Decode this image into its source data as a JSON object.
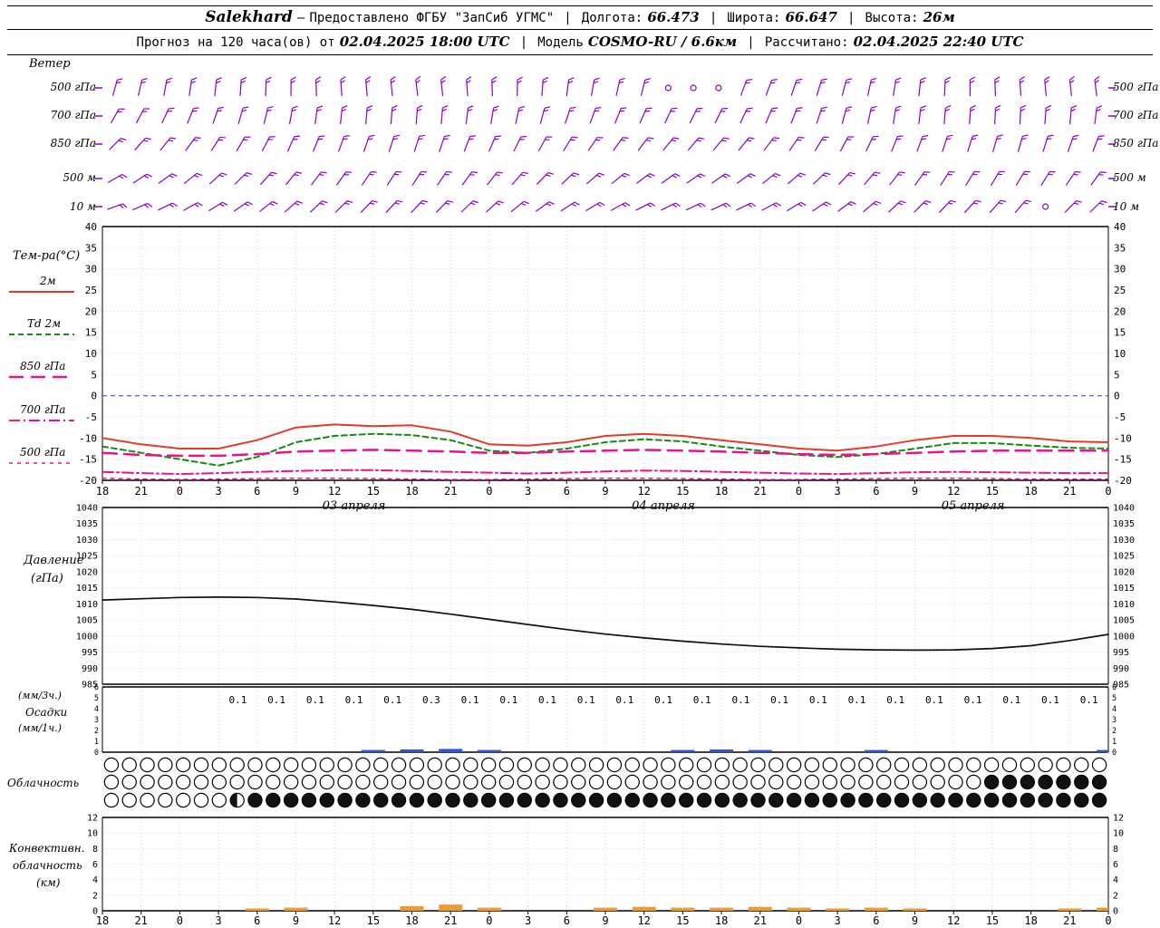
{
  "header": {
    "station": "Salekhard",
    "dash": "—",
    "provider": "Предоставлено ФГБУ \"ЗапСиб УГМС\"",
    "sep": "|",
    "lon_label": "Долгота:",
    "lon": "66.473",
    "lat_label": "Широта:",
    "lat": "66.647",
    "alt_label": "Высота:",
    "alt": "26м",
    "forecast_label": "Прогноз на 120 часа(ов) от",
    "run_time": "02.04.2025 18:00 UTC",
    "model_label": "Модель",
    "model": "COSMO-RU / 6.6км",
    "calc_label": "Рассчитано:",
    "calc_time": "02.04.2025 22:40 UTC"
  },
  "x_axis": {
    "tick_labels": [
      "18",
      "21",
      "0",
      "3",
      "6",
      "9",
      "12",
      "15",
      "18",
      "21",
      "0",
      "3",
      "6",
      "9",
      "12",
      "15",
      "18",
      "21",
      "0",
      "3",
      "6",
      "9",
      "12",
      "15",
      "18",
      "21",
      "0"
    ],
    "date_labels": [
      {
        "label": "03 апреля",
        "slot": 6.5
      },
      {
        "label": "04 апреля",
        "slot": 14.5
      },
      {
        "label": "05 апреля",
        "slot": 22.5
      }
    ]
  },
  "chart_data": [
    {
      "type": "scatter",
      "title": "Ветер",
      "color": "#8800cc",
      "levels": [
        {
          "label": "500 гПа",
          "angles": [
            15,
            13,
            10,
            8,
            6,
            4,
            2,
            0,
            -2,
            -4,
            -5,
            -6,
            -7,
            -6,
            -4,
            -2,
            1,
            4,
            7,
            10,
            12,
            14,
            null,
            null,
            null,
            20,
            20,
            19,
            17,
            15,
            12,
            9,
            6,
            3,
            0,
            -2,
            -4,
            -5,
            -6,
            -7
          ]
        },
        {
          "label": "700 гПа",
          "angles": [
            30,
            28,
            25,
            22,
            19,
            16,
            13,
            10,
            8,
            6,
            5,
            4,
            4,
            5,
            7,
            9,
            12,
            15,
            18,
            20,
            22,
            24,
            25,
            26,
            26,
            25,
            23,
            21,
            18,
            15,
            12,
            9,
            7,
            5,
            4,
            3,
            3,
            4,
            5,
            7
          ]
        },
        {
          "label": "850 гПа",
          "angles": [
            45,
            42,
            39,
            36,
            33,
            30,
            27,
            24,
            22,
            20,
            19,
            18,
            18,
            19,
            21,
            23,
            26,
            29,
            32,
            34,
            36,
            38,
            39,
            40,
            40,
            39,
            37,
            34,
            31,
            28,
            25,
            22,
            20,
            18,
            17,
            16,
            16,
            17,
            19,
            21
          ]
        },
        {
          "label": "500 м",
          "angles": [
            60,
            57,
            54,
            51,
            48,
            45,
            42,
            39,
            37,
            35,
            34,
            33,
            33,
            34,
            36,
            38,
            41,
            44,
            47,
            49,
            51,
            53,
            54,
            55,
            55,
            54,
            52,
            49,
            46,
            43,
            40,
            37,
            35,
            33,
            32,
            31,
            31,
            32,
            34,
            36
          ]
        },
        {
          "label": "10 м",
          "angles": [
            70,
            67,
            64,
            61,
            58,
            55,
            52,
            49,
            47,
            45,
            44,
            43,
            43,
            44,
            46,
            48,
            51,
            54,
            57,
            59,
            61,
            63,
            64,
            65,
            65,
            64,
            62,
            59,
            56,
            53,
            50,
            47,
            45,
            43,
            42,
            41,
            41,
            null,
            44,
            46
          ]
        }
      ]
    },
    {
      "type": "line",
      "title": "Тем-ра(°C)",
      "ylim": [
        -20,
        40
      ],
      "yticks": [
        40,
        35,
        30,
        25,
        20,
        15,
        10,
        5,
        0,
        -5,
        -10,
        -15,
        -20
      ],
      "zero_line_color": "#3a5bd9",
      "series": [
        {
          "name": "2м",
          "color": "#e03c28",
          "dash": "",
          "width": 2,
          "values": [
            -10,
            -11.5,
            -12.5,
            -12.5,
            -10.5,
            -7.5,
            -6.8,
            -7.2,
            -7,
            -8.5,
            -11.5,
            -11.8,
            -11,
            -9.5,
            -9,
            -9.5,
            -10.5,
            -11.5,
            -12.5,
            -13,
            -12,
            -10.5,
            -9.5,
            -9.5,
            -10,
            -10.8,
            -11
          ]
        },
        {
          "name": "Td 2м",
          "color": "#158a15",
          "dash": "6 4",
          "width": 2,
          "values": [
            -12,
            -13.5,
            -15,
            -16.5,
            -14.5,
            -11,
            -9.5,
            -9,
            -9.3,
            -10.5,
            -13,
            -13.5,
            -12.5,
            -11,
            -10.3,
            -10.8,
            -12,
            -13,
            -14,
            -14.5,
            -13.8,
            -12.5,
            -11.2,
            -11.2,
            -11.8,
            -12.3,
            -12.5
          ]
        },
        {
          "name": "850 гПа",
          "color": "#e6148e",
          "dash": "16 8",
          "width": 2.5,
          "values": [
            -13.5,
            -14,
            -14.2,
            -14.2,
            -13.8,
            -13.2,
            -13,
            -12.8,
            -13,
            -13.2,
            -13.5,
            -13.5,
            -13.2,
            -13,
            -12.8,
            -13,
            -13.2,
            -13.5,
            -13.8,
            -14,
            -13.8,
            -13.5,
            -13.2,
            -13,
            -13,
            -13,
            -13
          ]
        },
        {
          "name": "700 гПа",
          "color": "#e6148e",
          "dash": "12 4 2 4",
          "width": 2,
          "values": [
            -18,
            -18.3,
            -18.5,
            -18.3,
            -18,
            -17.8,
            -17.6,
            -17.6,
            -17.8,
            -18,
            -18.2,
            -18.4,
            -18.2,
            -17.9,
            -17.7,
            -17.8,
            -18,
            -18.2,
            -18.4,
            -18.5,
            -18.3,
            -18.1,
            -18,
            -18.1,
            -18.2,
            -18.3,
            -18.3
          ]
        },
        {
          "name": "500 гПа",
          "color": "#e6148e",
          "dash": "4 5",
          "width": 1.5,
          "values": [
            -19.5,
            -19.7,
            -19.8,
            -19.7,
            -19.6,
            -19.5,
            -19.5,
            -19.6,
            -19.7,
            -19.8,
            -19.8,
            -19.7,
            -19.6,
            -19.5,
            -19.5,
            -19.6,
            -19.7,
            -19.8,
            -19.8,
            -19.7,
            -19.6,
            -19.5,
            -19.5,
            -19.6,
            -19.7,
            -19.7,
            -19.7
          ]
        }
      ]
    },
    {
      "type": "line",
      "title_lines": [
        "Давление",
        "(гПа)"
      ],
      "ylim": [
        985,
        1040
      ],
      "yticks": [
        1040,
        1035,
        1030,
        1025,
        1020,
        1015,
        1010,
        1005,
        1000,
        995,
        990,
        985
      ],
      "color": "#101010",
      "values": [
        1011.2,
        1011.6,
        1012,
        1012.1,
        1012,
        1011.5,
        1010.6,
        1009.5,
        1008.3,
        1006.8,
        1005.2,
        1003.6,
        1002,
        1000.6,
        999.4,
        998.4,
        997.5,
        996.8,
        996.3,
        995.9,
        995.7,
        995.6,
        995.7,
        996.1,
        997,
        998.6,
        1000.5
      ]
    },
    {
      "type": "bar",
      "labels": [
        "(мм/3ч.)",
        "Осадки",
        "(мм/1ч.)"
      ],
      "ylim": [
        0,
        6
      ],
      "yticks": [
        6,
        5,
        4,
        3,
        2,
        1,
        0
      ],
      "bar_color": "#2f55cc",
      "amounts_start_slot": 4,
      "amounts": [
        "0.1",
        "0.1",
        "0.1",
        "0.1",
        "0.1",
        "0.3",
        "0.1",
        "0.1",
        "0.1",
        "0.1",
        "0.1",
        "0.1",
        "0.1",
        "0.1",
        "0.1",
        "0.1",
        "0.1",
        "0.1",
        "0.1",
        "0.1",
        "0.1",
        "0.1",
        "0.1"
      ],
      "bars": [
        {
          "slot": 7,
          "v": 0.2
        },
        {
          "slot": 8,
          "v": 0.25
        },
        {
          "slot": 9,
          "v": 0.3
        },
        {
          "slot": 10,
          "v": 0.2
        },
        {
          "slot": 15,
          "v": 0.2
        },
        {
          "slot": 16,
          "v": 0.25
        },
        {
          "slot": 17,
          "v": 0.2
        },
        {
          "slot": 20,
          "v": 0.2
        },
        {
          "slot": 26,
          "v": 0.2
        }
      ]
    },
    {
      "type": "table",
      "title": "Облачность",
      "rows": [
        "oooooooooooooooooooooooooooooooooooooooooooooooooooooooo",
        "ooooooooooooooooooooooooooooooooooooooooooooooooofffffff",
        "ooooooohffffffffffffffffffffffffffffffffffffffffffffffff"
      ]
    },
    {
      "type": "bar",
      "title_lines": [
        "Конвективн.",
        "облачность",
        "(км)"
      ],
      "ylim": [
        0,
        12
      ],
      "yticks": [
        12,
        10,
        8,
        6,
        4,
        2,
        0
      ],
      "bar_color": "#ed9a33",
      "values": [
        0,
        0,
        0,
        0,
        0.3,
        0.4,
        0,
        0,
        0.6,
        0.8,
        0.4,
        0,
        0,
        0.4,
        0.5,
        0.4,
        0.4,
        0.5,
        0.4,
        0.3,
        0.4,
        0.3,
        0,
        0,
        0,
        0.3,
        0.4
      ]
    }
  ]
}
